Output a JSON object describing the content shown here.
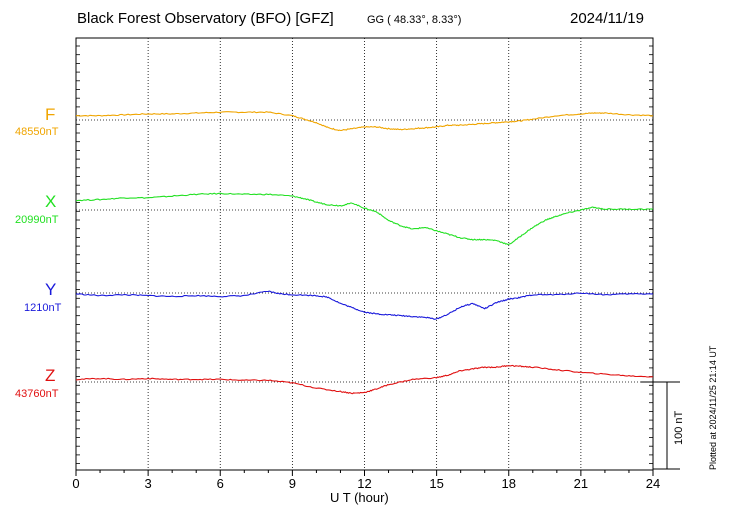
{
  "header": {
    "title": "Black Forest Observatory (BFO)  [GFZ]",
    "coords": "GG ( 48.33°,   8.33°)",
    "date": "2024/11/19"
  },
  "footer": {
    "plotted": "Plotted at 2024/11/25 21:14 UT"
  },
  "chart_data": {
    "type": "line",
    "xlabel": "U T (hour)",
    "xlim": [
      0,
      24
    ],
    "xticks": [
      "0",
      "3",
      "6",
      "9",
      "12",
      "15",
      "18",
      "21",
      "24"
    ],
    "scale_bar": "100 nT",
    "grid": true,
    "series": [
      {
        "name": "F",
        "baseline_label": "48550nT",
        "baseline": 48550,
        "color": "#f0a500",
        "points": [
          [
            0,
            48555
          ],
          [
            1,
            48555
          ],
          [
            2,
            48556
          ],
          [
            3,
            48557
          ],
          [
            4,
            48557
          ],
          [
            5,
            48558
          ],
          [
            6,
            48559
          ],
          [
            7,
            48559
          ],
          [
            8,
            48559
          ],
          [
            9,
            48555
          ],
          [
            9.5,
            48551
          ],
          [
            10,
            48547
          ],
          [
            10.5,
            48541
          ],
          [
            11,
            48538
          ],
          [
            11.5,
            48540
          ],
          [
            12,
            48542
          ],
          [
            12.5,
            48542
          ],
          [
            13,
            48540
          ],
          [
            13.5,
            48539
          ],
          [
            14,
            48540
          ],
          [
            14.5,
            48541
          ],
          [
            15,
            48542
          ],
          [
            15.5,
            48544
          ],
          [
            16,
            48544
          ],
          [
            16.5,
            48545
          ],
          [
            17,
            48546
          ],
          [
            17.5,
            48547
          ],
          [
            18,
            48548
          ],
          [
            18.5,
            48549
          ],
          [
            19,
            48551
          ],
          [
            20,
            48555
          ],
          [
            21,
            48557
          ],
          [
            21.5,
            48558
          ],
          [
            22,
            48558
          ],
          [
            23,
            48556
          ],
          [
            24,
            48555
          ]
        ]
      },
      {
        "name": "X",
        "baseline_label": "20990nT",
        "baseline": 20990,
        "color": "#22e022",
        "points": [
          [
            0,
            21001
          ],
          [
            1,
            21002
          ],
          [
            2,
            21004
          ],
          [
            3,
            21004
          ],
          [
            4,
            21006
          ],
          [
            5,
            21008
          ],
          [
            6,
            21009
          ],
          [
            7,
            21008
          ],
          [
            8,
            21008
          ],
          [
            9,
            21006
          ],
          [
            9.5,
            21003
          ],
          [
            10,
            20999
          ],
          [
            10.5,
            20996
          ],
          [
            11,
            20995
          ],
          [
            11.5,
            20998
          ],
          [
            12,
            20992
          ],
          [
            12.5,
            20988
          ],
          [
            13,
            20978
          ],
          [
            13.5,
            20972
          ],
          [
            14,
            20968
          ],
          [
            14.5,
            20970
          ],
          [
            15,
            20966
          ],
          [
            15.5,
            20962
          ],
          [
            16,
            20958
          ],
          [
            16.5,
            20956
          ],
          [
            17,
            20956
          ],
          [
            17.5,
            20955
          ],
          [
            18,
            20950
          ],
          [
            18.5,
            20960
          ],
          [
            19,
            20970
          ],
          [
            19.5,
            20978
          ],
          [
            20,
            20983
          ],
          [
            20.5,
            20987
          ],
          [
            21,
            20990
          ],
          [
            21.5,
            20993
          ],
          [
            22,
            20991
          ],
          [
            23,
            20991
          ],
          [
            24,
            20991
          ]
        ]
      },
      {
        "name": "Y",
        "baseline_label": "1210nT",
        "baseline": 1210,
        "color": "#1a1adb",
        "points": [
          [
            0,
            1209
          ],
          [
            1,
            1207
          ],
          [
            2,
            1208
          ],
          [
            3,
            1207
          ],
          [
            4,
            1206
          ],
          [
            5,
            1207
          ],
          [
            6,
            1206
          ],
          [
            7,
            1207
          ],
          [
            8,
            1212
          ],
          [
            8.5,
            1209
          ],
          [
            9,
            1208
          ],
          [
            10,
            1207
          ],
          [
            10.5,
            1205
          ],
          [
            11,
            1198
          ],
          [
            11.5,
            1193
          ],
          [
            12,
            1188
          ],
          [
            12.5,
            1186
          ],
          [
            13,
            1185
          ],
          [
            13.5,
            1184
          ],
          [
            14,
            1183
          ],
          [
            14.5,
            1182
          ],
          [
            15,
            1180
          ],
          [
            15.5,
            1186
          ],
          [
            16,
            1194
          ],
          [
            16.5,
            1198
          ],
          [
            17,
            1192
          ],
          [
            17.5,
            1199
          ],
          [
            18,
            1203
          ],
          [
            18.5,
            1205
          ],
          [
            19,
            1208
          ],
          [
            20,
            1208
          ],
          [
            21,
            1210
          ],
          [
            22,
            1208
          ],
          [
            23,
            1209
          ],
          [
            24,
            1209
          ]
        ]
      },
      {
        "name": "Z",
        "baseline_label": "43760nT",
        "baseline": 43760,
        "color": "#e01010",
        "points": [
          [
            0,
            43763
          ],
          [
            1,
            43764
          ],
          [
            2,
            43763
          ],
          [
            3,
            43764
          ],
          [
            4,
            43763
          ],
          [
            5,
            43763
          ],
          [
            6,
            43763
          ],
          [
            7,
            43762
          ],
          [
            8,
            43762
          ],
          [
            9,
            43759
          ],
          [
            10,
            43753
          ],
          [
            11,
            43749
          ],
          [
            11.5,
            43747
          ],
          [
            12,
            43748
          ],
          [
            12.5,
            43752
          ],
          [
            13,
            43757
          ],
          [
            14,
            43763
          ],
          [
            15,
            43765
          ],
          [
            15.5,
            43768
          ],
          [
            16,
            43773
          ],
          [
            16.5,
            43775
          ],
          [
            17,
            43777
          ],
          [
            17.5,
            43777
          ],
          [
            18,
            43779
          ],
          [
            18.5,
            43778
          ],
          [
            19,
            43777
          ],
          [
            20,
            43774
          ],
          [
            21,
            43771
          ],
          [
            22,
            43769
          ],
          [
            23,
            43767
          ],
          [
            24,
            43766
          ]
        ]
      }
    ]
  }
}
